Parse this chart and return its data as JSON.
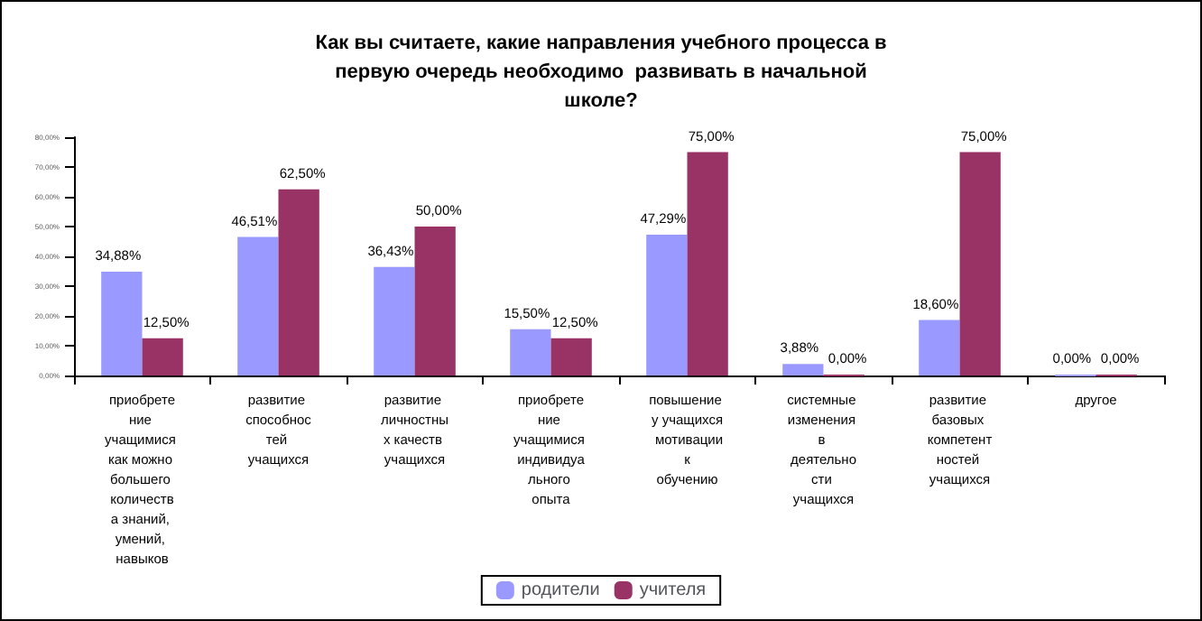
{
  "chart_data": {
    "type": "bar",
    "title": "Как вы считаете, какие направления учебного процесса в первую очередь необходимо  развивать в начальной школе?",
    "categories": [
      "приобретение учащимися как можно большего количества знаний, умений, навыков",
      "развитие способностей учащихся",
      "развитие личностных качеств учащихся",
      "приобретение учащимися индивидуального опыта",
      "повышение у учащихся мотивации к обучению",
      "системные изменения в деятельности учащихся",
      "развитие базовых компетентностей учащихся",
      "другое"
    ],
    "series": [
      {
        "name": "родители",
        "color": "#9999ff",
        "values": [
          34.88,
          46.51,
          36.43,
          15.5,
          47.29,
          3.88,
          18.6,
          0
        ],
        "value_labels": [
          "34,88%",
          "46,51%",
          "36,43%",
          "15,50%",
          "47,29%",
          "3,88%",
          "18,60%",
          "0,00%"
        ]
      },
      {
        "name": "учителя",
        "color": "#993366",
        "values": [
          12.5,
          62.5,
          50,
          12.5,
          75,
          0,
          75,
          0
        ],
        "value_labels": [
          "12,50%",
          "62,50%",
          "50,00%",
          "12,50%",
          "75,00%",
          "0,00%",
          "75,00%",
          "0,00%"
        ]
      }
    ],
    "ylim": [
      0,
      80
    ],
    "yticks": [
      {
        "value": 0,
        "label": "0,00%"
      },
      {
        "value": 10,
        "label": "10,00%"
      },
      {
        "value": 20,
        "label": "20,00%"
      },
      {
        "value": 30,
        "label": "30,00%"
      },
      {
        "value": 40,
        "label": "40,00%"
      },
      {
        "value": 50,
        "label": "50,00%"
      },
      {
        "value": 60,
        "label": "60,00%"
      },
      {
        "value": 70,
        "label": "70,00%"
      },
      {
        "value": 80,
        "label": "80,00%"
      }
    ],
    "grid": false,
    "legend": "bottom"
  }
}
